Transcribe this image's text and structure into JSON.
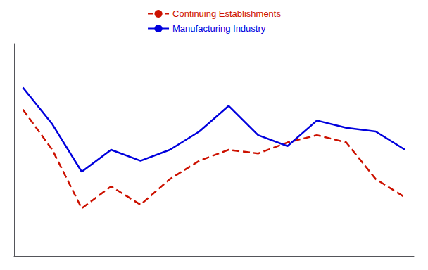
{
  "chart_data": {
    "type": "line",
    "x": [
      0,
      1,
      2,
      3,
      4,
      5,
      6,
      7,
      8,
      9,
      10,
      11,
      12,
      13
    ],
    "series": [
      {
        "name": "Continuing Establishments",
        "color": "#cc1100",
        "line_style": "dashed",
        "values": [
          0.74,
          0.63,
          0.47,
          0.53,
          0.48,
          0.55,
          0.6,
          0.63,
          0.62,
          0.65,
          0.67,
          0.65,
          0.55,
          0.5
        ]
      },
      {
        "name": "Manufacturing Industry",
        "color": "#0000dd",
        "line_style": "solid",
        "values": [
          0.8,
          0.7,
          0.57,
          0.63,
          0.6,
          0.63,
          0.68,
          0.75,
          0.67,
          0.64,
          0.71,
          0.69,
          0.68,
          0.63
        ]
      }
    ],
    "xlim": [
      -0.3,
      13.3
    ],
    "ylim": [
      0.34,
      0.92
    ],
    "xticks": [],
    "yticks": [],
    "tick_labels": false,
    "grid": false,
    "legend": "top"
  }
}
